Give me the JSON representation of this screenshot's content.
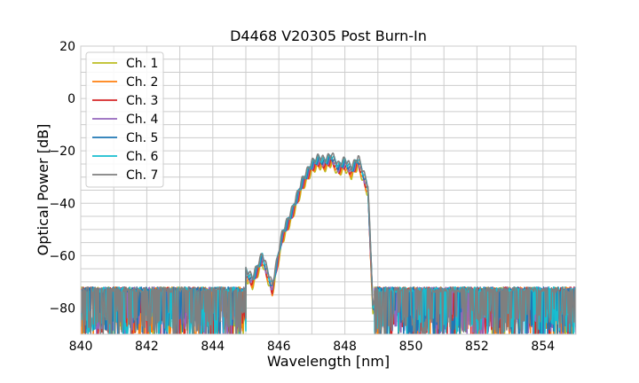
{
  "chart_data": {
    "type": "line",
    "title": "D4468 V20305 Post Burn-In",
    "xlabel": "Wavelength [nm]",
    "ylabel": "Optical Power [dB]",
    "xlim": [
      840,
      855
    ],
    "ylim": [
      -90,
      20
    ],
    "xticks": [
      840,
      842,
      844,
      846,
      848,
      850,
      852,
      854
    ],
    "yticks": [
      20,
      0,
      -20,
      -40,
      -60,
      -80
    ],
    "xtick_labels": [
      "840",
      "842",
      "844",
      "846",
      "848",
      "850",
      "852",
      "854"
    ],
    "ytick_labels": [
      "20",
      "0",
      "−20",
      "−40",
      "−60",
      "−80"
    ],
    "grid": true,
    "legend_position": "top-left",
    "series": [
      {
        "name": "Ch. 1",
        "color": "#bcbd22"
      },
      {
        "name": "Ch. 2",
        "color": "#ff7f0e"
      },
      {
        "name": "Ch. 3",
        "color": "#d62728"
      },
      {
        "name": "Ch. 4",
        "color": "#9467bd"
      },
      {
        "name": "Ch. 5",
        "color": "#1f77b4"
      },
      {
        "name": "Ch. 6",
        "color": "#17becf"
      },
      {
        "name": "Ch. 7",
        "color": "#7f7f7f"
      }
    ],
    "spectrum_envelope": {
      "x": [
        844.8,
        845.0,
        845.2,
        845.5,
        845.8,
        846.1,
        846.4,
        846.7,
        847.0,
        847.2,
        847.4,
        847.6,
        847.8,
        848.0,
        848.2,
        848.4,
        848.7,
        848.85
      ],
      "y": [
        -70,
        -67,
        -70,
        -61,
        -73,
        -53,
        -44,
        -33,
        -26,
        -24,
        -25,
        -23,
        -27,
        -25,
        -28,
        -24,
        -35,
        -80
      ]
    },
    "noise_floor": {
      "x_ranges": [
        [
          840,
          845.0
        ],
        [
          848.9,
          855
        ]
      ],
      "y_range": [
        -90,
        -72
      ]
    },
    "colors": {
      "grid": "#cccccc",
      "axis": "#555555"
    }
  }
}
